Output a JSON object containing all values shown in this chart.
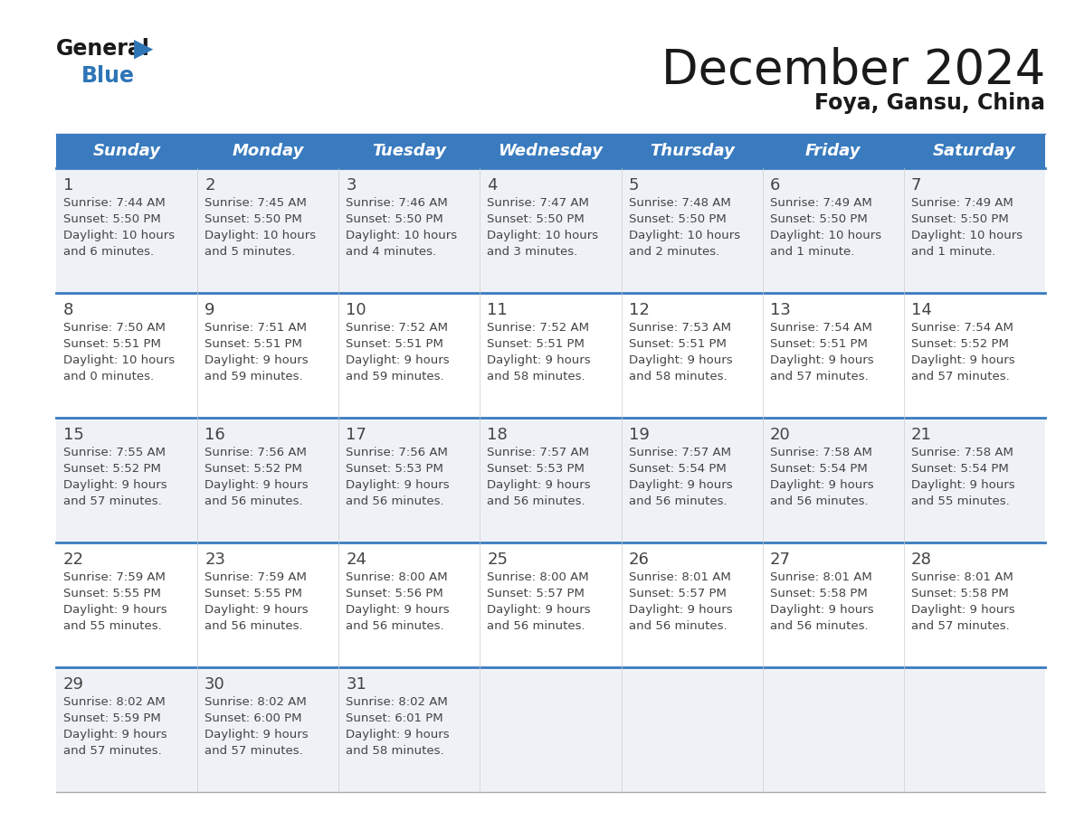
{
  "title": "December 2024",
  "subtitle": "Foya, Gansu, China",
  "header_color": "#3a7bbf",
  "header_text_color": "#ffffff",
  "cell_bg_light": "#eef2f7",
  "cell_bg_white": "#ffffff",
  "border_color": "#3a7bbf",
  "text_color": "#444444",
  "day_headers": [
    "Sunday",
    "Monday",
    "Tuesday",
    "Wednesday",
    "Thursday",
    "Friday",
    "Saturday"
  ],
  "weeks": [
    [
      {
        "day": 1,
        "sunrise": "7:44 AM",
        "sunset": "5:50 PM",
        "daylight": "10 hours and 6 minutes."
      },
      {
        "day": 2,
        "sunrise": "7:45 AM",
        "sunset": "5:50 PM",
        "daylight": "10 hours and 5 minutes."
      },
      {
        "day": 3,
        "sunrise": "7:46 AM",
        "sunset": "5:50 PM",
        "daylight": "10 hours and 4 minutes."
      },
      {
        "day": 4,
        "sunrise": "7:47 AM",
        "sunset": "5:50 PM",
        "daylight": "10 hours and 3 minutes."
      },
      {
        "day": 5,
        "sunrise": "7:48 AM",
        "sunset": "5:50 PM",
        "daylight": "10 hours and 2 minutes."
      },
      {
        "day": 6,
        "sunrise": "7:49 AM",
        "sunset": "5:50 PM",
        "daylight": "10 hours and 1 minute."
      },
      {
        "day": 7,
        "sunrise": "7:49 AM",
        "sunset": "5:50 PM",
        "daylight": "10 hours and 1 minute."
      }
    ],
    [
      {
        "day": 8,
        "sunrise": "7:50 AM",
        "sunset": "5:51 PM",
        "daylight": "10 hours and 0 minutes."
      },
      {
        "day": 9,
        "sunrise": "7:51 AM",
        "sunset": "5:51 PM",
        "daylight": "9 hours and 59 minutes."
      },
      {
        "day": 10,
        "sunrise": "7:52 AM",
        "sunset": "5:51 PM",
        "daylight": "9 hours and 59 minutes."
      },
      {
        "day": 11,
        "sunrise": "7:52 AM",
        "sunset": "5:51 PM",
        "daylight": "9 hours and 58 minutes."
      },
      {
        "day": 12,
        "sunrise": "7:53 AM",
        "sunset": "5:51 PM",
        "daylight": "9 hours and 58 minutes."
      },
      {
        "day": 13,
        "sunrise": "7:54 AM",
        "sunset": "5:51 PM",
        "daylight": "9 hours and 57 minutes."
      },
      {
        "day": 14,
        "sunrise": "7:54 AM",
        "sunset": "5:52 PM",
        "daylight": "9 hours and 57 minutes."
      }
    ],
    [
      {
        "day": 15,
        "sunrise": "7:55 AM",
        "sunset": "5:52 PM",
        "daylight": "9 hours and 57 minutes."
      },
      {
        "day": 16,
        "sunrise": "7:56 AM",
        "sunset": "5:52 PM",
        "daylight": "9 hours and 56 minutes."
      },
      {
        "day": 17,
        "sunrise": "7:56 AM",
        "sunset": "5:53 PM",
        "daylight": "9 hours and 56 minutes."
      },
      {
        "day": 18,
        "sunrise": "7:57 AM",
        "sunset": "5:53 PM",
        "daylight": "9 hours and 56 minutes."
      },
      {
        "day": 19,
        "sunrise": "7:57 AM",
        "sunset": "5:54 PM",
        "daylight": "9 hours and 56 minutes."
      },
      {
        "day": 20,
        "sunrise": "7:58 AM",
        "sunset": "5:54 PM",
        "daylight": "9 hours and 56 minutes."
      },
      {
        "day": 21,
        "sunrise": "7:58 AM",
        "sunset": "5:54 PM",
        "daylight": "9 hours and 55 minutes."
      }
    ],
    [
      {
        "day": 22,
        "sunrise": "7:59 AM",
        "sunset": "5:55 PM",
        "daylight": "9 hours and 55 minutes."
      },
      {
        "day": 23,
        "sunrise": "7:59 AM",
        "sunset": "5:55 PM",
        "daylight": "9 hours and 56 minutes."
      },
      {
        "day": 24,
        "sunrise": "8:00 AM",
        "sunset": "5:56 PM",
        "daylight": "9 hours and 56 minutes."
      },
      {
        "day": 25,
        "sunrise": "8:00 AM",
        "sunset": "5:57 PM",
        "daylight": "9 hours and 56 minutes."
      },
      {
        "day": 26,
        "sunrise": "8:01 AM",
        "sunset": "5:57 PM",
        "daylight": "9 hours and 56 minutes."
      },
      {
        "day": 27,
        "sunrise": "8:01 AM",
        "sunset": "5:58 PM",
        "daylight": "9 hours and 56 minutes."
      },
      {
        "day": 28,
        "sunrise": "8:01 AM",
        "sunset": "5:58 PM",
        "daylight": "9 hours and 57 minutes."
      }
    ],
    [
      {
        "day": 29,
        "sunrise": "8:02 AM",
        "sunset": "5:59 PM",
        "daylight": "9 hours and 57 minutes."
      },
      {
        "day": 30,
        "sunrise": "8:02 AM",
        "sunset": "6:00 PM",
        "daylight": "9 hours and 57 minutes."
      },
      {
        "day": 31,
        "sunrise": "8:02 AM",
        "sunset": "6:01 PM",
        "daylight": "9 hours and 58 minutes."
      },
      null,
      null,
      null,
      null
    ]
  ],
  "logo_black_color": "#1a1a1a",
  "logo_blue_color": "#2e75b6",
  "title_fontsize": 38,
  "subtitle_fontsize": 17,
  "header_fontsize": 13,
  "day_num_fontsize": 13,
  "cell_text_fontsize": 9.5
}
